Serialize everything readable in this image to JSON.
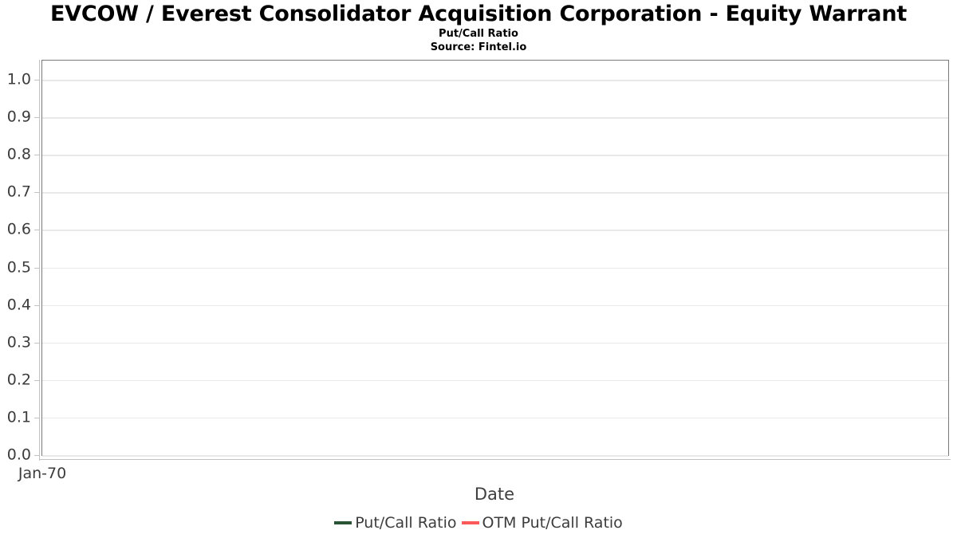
{
  "header": {
    "title": "EVCOW / Everest Consolidator Acquisition Corporation - Equity Warrant",
    "subtitle": "Put/Call Ratio",
    "source": "Source: Fintel.io"
  },
  "chart_data": {
    "type": "line",
    "title": "EVCOW / Everest Consolidator Acquisition Corporation - Equity Warrant",
    "subtitle": "Put/Call Ratio",
    "source": "Source: Fintel.io",
    "xlabel": "Date",
    "ylabel": "",
    "ylim": [
      0,
      1.051
    ],
    "y_ticks": [
      "0.0",
      "0.1",
      "0.2",
      "0.3",
      "0.4",
      "0.5",
      "0.6",
      "0.7",
      "0.8",
      "0.9",
      "1.0"
    ],
    "x_tick_labels": [
      "Jan-70"
    ],
    "grid": "horizontal",
    "legend_position": "bottom-center",
    "series": [
      {
        "name": "Put/Call Ratio",
        "color": "#265434",
        "x": [],
        "values": []
      },
      {
        "name": "OTM Put/Call Ratio",
        "color": "#fc5a5a",
        "x": [],
        "values": []
      }
    ]
  },
  "colors": {
    "put_call_series": "#265434",
    "otm_put_call_series": "#fc5a5a",
    "plot_border": "#7a7a7a",
    "gridline": "#e9e9e9",
    "axis_line": "#c2c2c2",
    "tick_text": "#3c3c3c",
    "title_text": "#000000"
  }
}
